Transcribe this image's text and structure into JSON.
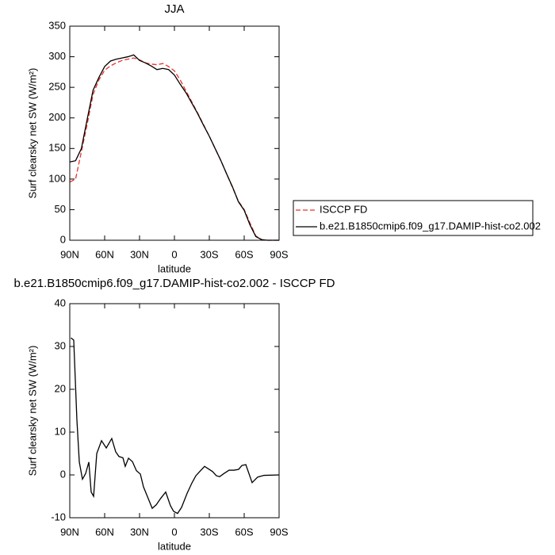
{
  "chart_data": [
    {
      "type": "line",
      "title": "JJA",
      "xlabel": "latitude",
      "ylabel": "Surf clearsky net SW (W/m²)",
      "x": [
        90,
        85,
        80,
        75,
        70,
        65,
        60,
        55,
        50,
        45,
        40,
        35,
        30,
        25,
        20,
        15,
        10,
        5,
        0,
        -5,
        -10,
        -15,
        -20,
        -25,
        -30,
        -35,
        -40,
        -45,
        -50,
        -55,
        -60,
        -65,
        -70,
        -75,
        -80,
        -85,
        -90
      ],
      "series": [
        {
          "name": "ISCCP FD",
          "color": "#e8322b",
          "line_style": "dashed",
          "values": [
            95,
            100,
            145,
            190,
            238,
            262,
            278,
            285,
            290,
            294,
            296,
            298,
            295,
            290,
            288,
            287,
            289,
            284,
            277,
            262,
            244,
            226,
            208,
            189,
            170,
            150,
            130,
            108,
            86,
            64,
            50,
            28,
            7,
            1,
            0,
            0,
            0
          ]
        },
        {
          "name": "b.e21.B1850cmip6.f09_g17.DAMIP-hist-co2.002",
          "color": "#000000",
          "line_style": "solid",
          "values": [
            128,
            130,
            150,
            198,
            245,
            266,
            284,
            293,
            296,
            298,
            300,
            303,
            294,
            290,
            285,
            279,
            281,
            279,
            270,
            255,
            241,
            224,
            207,
            188,
            170,
            150,
            130,
            108,
            87,
            63,
            49,
            25,
            6,
            1,
            0,
            0,
            0
          ]
        }
      ],
      "xlim": [
        90,
        -90
      ],
      "xticks": [
        {
          "value": 90,
          "label": "90N"
        },
        {
          "value": 60,
          "label": "60N"
        },
        {
          "value": 30,
          "label": "30N"
        },
        0,
        {
          "value": -30,
          "label": "30S"
        },
        {
          "value": -60,
          "label": "60S"
        },
        {
          "value": -90,
          "label": "90S"
        }
      ],
      "ylim": [
        0,
        350
      ],
      "yticks": [
        0,
        50,
        100,
        150,
        200,
        250,
        300,
        350
      ],
      "legend": "right"
    },
    {
      "type": "line",
      "title": "b.e21.B1850cmip6.f09_g17.DAMIP-hist-co2.002 - ISCCP FD",
      "xlabel": "latitude",
      "ylabel": "Surf clearsky net SW (W/m²)",
      "x": [
        89,
        86.6,
        83.9,
        81.8,
        79.1,
        76.4,
        73.6,
        71.6,
        69.5,
        66.8,
        62.7,
        58.6,
        53.9,
        50.5,
        47.7,
        44.3,
        42.3,
        39.5,
        36.1,
        32.7,
        29.3,
        26.6,
        19.1,
        15.7,
        11.6,
        7.5,
        3.4,
        0.7,
        -2.7,
        -6.1,
        -10.9,
        -15,
        -18.4,
        -22.5,
        -25.9,
        -29.3,
        -32.7,
        -36.1,
        -38.9,
        -43,
        -47,
        -51.1,
        -55.2,
        -58,
        -61.4,
        -66.8,
        -71.6,
        -77,
        -90
      ],
      "series": [
        {
          "name": "b.e21.B1850cmip6.f09_g17.DAMIP-hist-co2.002 - ISCCP FD",
          "color": "#000000",
          "line_style": "solid",
          "values": [
            32,
            31.5,
            13,
            3,
            -1,
            0.3,
            3,
            -4,
            -5,
            5,
            8,
            6.3,
            8.5,
            5.4,
            4.3,
            4,
            2,
            3.9,
            3.1,
            1,
            0.2,
            -2.8,
            -7.8,
            -7,
            -5.4,
            -4,
            -7.2,
            -8.5,
            -9,
            -7.6,
            -4.3,
            -1.9,
            -0.2,
            1,
            2,
            1.4,
            0.8,
            -0.2,
            -0.4,
            0.4,
            1.1,
            1.1,
            1.3,
            2.2,
            2.4,
            -1.8,
            -0.5,
            -0.1,
            0
          ]
        }
      ],
      "xlim": [
        90,
        -90
      ],
      "xticks": [
        {
          "value": 90,
          "label": "90N"
        },
        {
          "value": 60,
          "label": "60N"
        },
        {
          "value": 30,
          "label": "30N"
        },
        0,
        {
          "value": -30,
          "label": "30S"
        },
        {
          "value": -60,
          "label": "60S"
        },
        {
          "value": -90,
          "label": "90S"
        }
      ],
      "ylim": [
        -10,
        40
      ],
      "yticks": [
        -10,
        0,
        10,
        20,
        30,
        40
      ]
    }
  ]
}
